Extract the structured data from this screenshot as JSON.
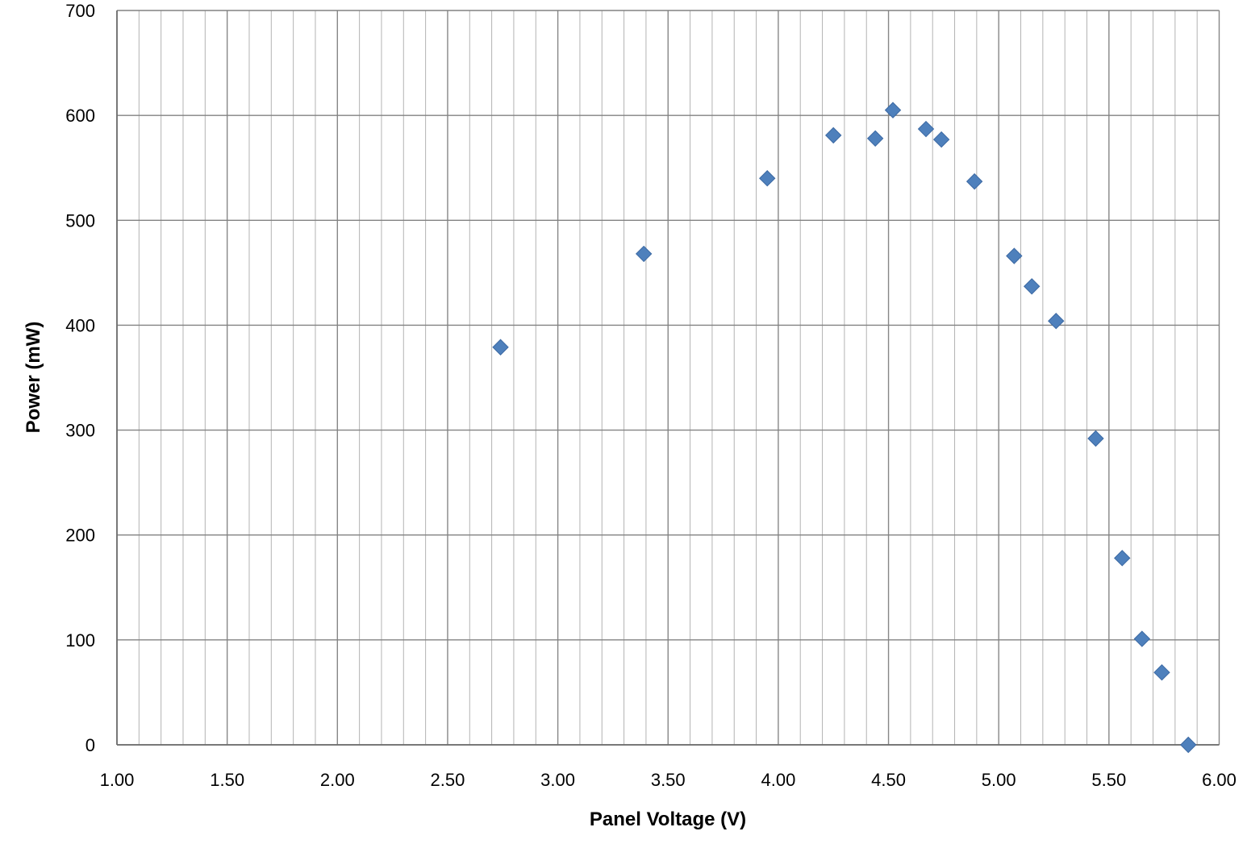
{
  "chart_data": {
    "type": "scatter",
    "title": "",
    "xlabel": "Panel Voltage (V)",
    "ylabel": "Power (mW)",
    "xlim": [
      1.0,
      6.0
    ],
    "ylim": [
      0,
      700
    ],
    "x_major_step": 0.5,
    "x_minor_step": 0.1,
    "y_major_step": 100,
    "x_tick_labels": [
      "1.00",
      "1.50",
      "2.00",
      "2.50",
      "3.00",
      "3.50",
      "4.00",
      "4.50",
      "5.00",
      "5.50",
      "6.00"
    ],
    "y_tick_labels": [
      "0",
      "100",
      "200",
      "300",
      "400",
      "500",
      "600",
      "700"
    ],
    "grid": {
      "minor_vertical_color": "#b3b3b3",
      "major_vertical_color": "#878787",
      "horizontal_color": "#828282",
      "axis_line_color": "#6e6e6e"
    },
    "series": [
      {
        "name": "Power",
        "marker": "diamond",
        "marker_fill": "#4e80bc",
        "marker_stroke": "#3c69a3",
        "points": [
          [
            2.74,
            379
          ],
          [
            3.39,
            468
          ],
          [
            3.95,
            540
          ],
          [
            4.25,
            581
          ],
          [
            4.44,
            578
          ],
          [
            4.52,
            605
          ],
          [
            4.67,
            587
          ],
          [
            4.74,
            577
          ],
          [
            4.89,
            537
          ],
          [
            5.07,
            466
          ],
          [
            5.15,
            437
          ],
          [
            5.26,
            404
          ],
          [
            5.44,
            292
          ],
          [
            5.56,
            178
          ],
          [
            5.65,
            101
          ],
          [
            5.74,
            69
          ],
          [
            5.86,
            0
          ]
        ]
      }
    ]
  }
}
